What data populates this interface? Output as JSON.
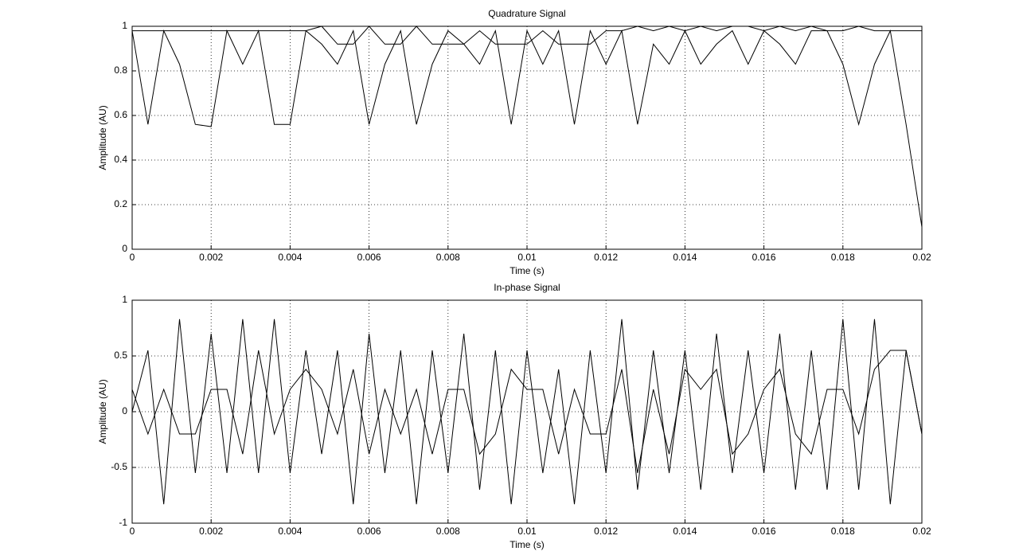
{
  "chart_data": [
    {
      "type": "line",
      "title": "Quadrature Signal",
      "x_label": "Time (s)",
      "y_label": "Amplitude (AU)",
      "x": [
        0,
        0.0004,
        0.0008,
        0.0012,
        0.0016,
        0.002,
        0.0024,
        0.0028,
        0.0032,
        0.0036,
        0.004,
        0.0044,
        0.0048,
        0.0052,
        0.0056,
        0.006,
        0.0064,
        0.0068,
        0.0072,
        0.0076,
        0.008,
        0.0084,
        0.0088,
        0.0092,
        0.0096,
        0.01,
        0.0104,
        0.0108,
        0.0112,
        0.0116,
        0.012,
        0.0124,
        0.0128,
        0.0132,
        0.0136,
        0.014,
        0.0144,
        0.0148,
        0.0152,
        0.0156,
        0.016,
        0.0164,
        0.0168,
        0.0172,
        0.0176,
        0.018,
        0.0184,
        0.0188,
        0.0192,
        0.0196,
        0.02
      ],
      "series": [
        {
          "color": "#000000",
          "values": [
            0.98,
            0.56,
            0.98,
            0.83,
            0.56,
            0.55,
            0.98,
            0.83,
            0.98,
            0.56,
            0.56,
            0.98,
            0.92,
            0.83,
            0.98,
            0.56,
            0.83,
            0.98,
            0.56,
            0.83,
            0.98,
            0.92,
            0.83,
            0.98,
            0.56,
            0.98,
            0.83,
            0.98,
            0.56,
            0.98,
            0.83,
            0.98,
            0.56,
            0.92,
            0.83,
            0.98,
            0.83,
            0.92,
            0.98,
            0.83,
            0.98,
            0.92,
            0.83,
            0.98,
            0.98,
            0.83,
            0.56,
            0.83,
            0.98,
            0.56,
            0.1
          ]
        },
        {
          "color": "#000000",
          "values": [
            0.98,
            0.98,
            0.98,
            0.98,
            0.98,
            0.98,
            0.98,
            0.98,
            0.98,
            0.98,
            0.98,
            0.98,
            1,
            0.92,
            0.92,
            1,
            0.92,
            0.92,
            1,
            0.92,
            0.92,
            0.92,
            0.98,
            0.92,
            0.92,
            0.92,
            0.98,
            0.92,
            0.92,
            0.92,
            0.98,
            0.98,
            1,
            0.98,
            1,
            0.98,
            1,
            0.98,
            1,
            1,
            0.98,
            1,
            0.98,
            1,
            0.98,
            0.98,
            1,
            0.98,
            0.98,
            0.98,
            0.98
          ]
        }
      ],
      "xlim": [
        0,
        0.02
      ],
      "xticks": [
        0,
        0.002,
        0.004,
        0.006,
        0.008,
        0.01,
        0.012,
        0.014,
        0.016,
        0.018,
        0.02
      ],
      "ylim": [
        0,
        1
      ],
      "yticks": [
        0,
        0.2,
        0.4,
        0.6,
        0.8,
        1
      ],
      "grid": true
    },
    {
      "type": "line",
      "title": "In-phase Signal",
      "x_label": "Time (s)",
      "y_label": "Amplitude (AU)",
      "x": [
        0,
        0.0004,
        0.0008,
        0.0012,
        0.0016,
        0.002,
        0.0024,
        0.0028,
        0.0032,
        0.0036,
        0.004,
        0.0044,
        0.0048,
        0.0052,
        0.0056,
        0.006,
        0.0064,
        0.0068,
        0.0072,
        0.0076,
        0.008,
        0.0084,
        0.0088,
        0.0092,
        0.0096,
        0.01,
        0.0104,
        0.0108,
        0.0112,
        0.0116,
        0.012,
        0.0124,
        0.0128,
        0.0132,
        0.0136,
        0.014,
        0.0144,
        0.0148,
        0.0152,
        0.0156,
        0.016,
        0.0164,
        0.0168,
        0.0172,
        0.0176,
        0.018,
        0.0184,
        0.0188,
        0.0192,
        0.0196,
        0.02
      ],
      "series": [
        {
          "color": "#000000",
          "values": [
            0,
            0.55,
            -0.83,
            0.83,
            -0.55,
            0.7,
            -0.55,
            0.83,
            -0.55,
            0.83,
            -0.55,
            0.55,
            -0.38,
            0.55,
            -0.83,
            0.7,
            -0.55,
            0.55,
            -0.83,
            0.55,
            -0.55,
            0.7,
            -0.7,
            0.55,
            -0.83,
            0.55,
            -0.55,
            0.38,
            -0.83,
            0.55,
            -0.55,
            0.83,
            -0.7,
            0.55,
            -0.55,
            0.55,
            -0.7,
            0.7,
            -0.55,
            0.55,
            -0.55,
            0.7,
            -0.7,
            0.55,
            -0.7,
            0.83,
            -0.7,
            0.83,
            -0.83,
            0.55,
            -0.2
          ]
        },
        {
          "color": "#000000",
          "values": [
            0.2,
            -0.2,
            0.2,
            -0.2,
            -0.2,
            0.2,
            0.2,
            -0.38,
            0.55,
            -0.2,
            0.2,
            0.38,
            0.2,
            -0.2,
            0.38,
            -0.38,
            0.2,
            -0.2,
            0.2,
            -0.38,
            0.2,
            0.2,
            -0.38,
            -0.2,
            0.38,
            0.2,
            0.2,
            -0.38,
            0.2,
            -0.2,
            -0.2,
            0.38,
            -0.55,
            0.2,
            -0.38,
            0.38,
            0.2,
            0.38,
            -0.38,
            -0.2,
            0.2,
            0.38,
            -0.2,
            -0.38,
            0.2,
            0.2,
            -0.2,
            0.38,
            0.55,
            0.55,
            -0.2
          ]
        }
      ],
      "xlim": [
        0,
        0.02
      ],
      "xticks": [
        0,
        0.002,
        0.004,
        0.006,
        0.008,
        0.01,
        0.012,
        0.014,
        0.016,
        0.018,
        0.02
      ],
      "ylim": [
        -1,
        1
      ],
      "yticks": [
        -1,
        -0.5,
        0,
        0.5,
        1
      ],
      "grid": true
    }
  ]
}
